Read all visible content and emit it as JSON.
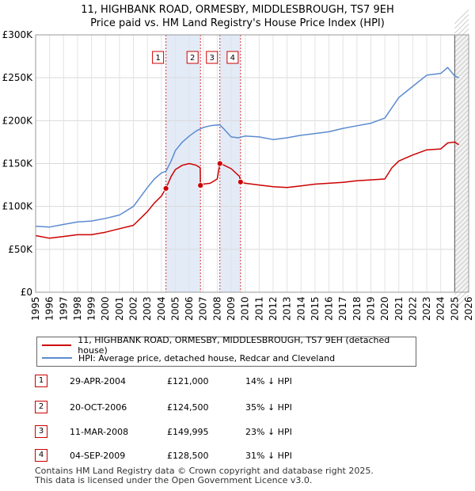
{
  "title": {
    "line1": "11, HIGHBANK ROAD, ORMESBY, MIDDLESBROUGH, TS7 9EH",
    "line2": "Price paid vs. HM Land Registry's House Price Index (HPI)"
  },
  "colors": {
    "price": "#cc0000",
    "hpi": "#5b8bd0",
    "shade": "#dce6f5"
  },
  "chart_data": {
    "type": "line",
    "title": "Price paid vs. HM Land Registry's House Price Index (HPI)",
    "xlim": [
      1995,
      2026
    ],
    "ylim": [
      0,
      300000
    ],
    "y_ticks": [
      0,
      50000,
      100000,
      150000,
      200000,
      250000,
      300000
    ],
    "y_tick_labels": [
      "£0",
      "£50K",
      "£100K",
      "£150K",
      "£200K",
      "£250K",
      "£300K"
    ],
    "x_ticks": [
      1995,
      1996,
      1997,
      1998,
      1999,
      2000,
      2001,
      2002,
      2003,
      2004,
      2005,
      2006,
      2007,
      2008,
      2009,
      2010,
      2011,
      2012,
      2013,
      2014,
      2015,
      2016,
      2017,
      2018,
      2019,
      2020,
      2021,
      2022,
      2023,
      2024,
      2025,
      2026
    ],
    "grid": true,
    "shaded_ranges": [
      [
        2004.33,
        2006.8
      ],
      [
        2008.19,
        2009.67
      ]
    ],
    "projection_start": 2025.0,
    "series": [
      {
        "name": "11, HIGHBANK ROAD, ORMESBY, MIDDLESBROUGH, TS7 9EH (detached house)",
        "color": "#cc0000",
        "x": [
          1995,
          1996,
          1997,
          1998,
          1999,
          2000,
          2001,
          2002,
          2003,
          2003.5,
          2004,
          2004.33,
          2004.7,
          2005,
          2005.5,
          2006,
          2006.5,
          2006.78,
          2006.8,
          2007,
          2007.5,
          2008,
          2008.19,
          2008.5,
          2009,
          2009.6,
          2009.67,
          2010,
          2011,
          2012,
          2013,
          2014,
          2015,
          2016,
          2017,
          2018,
          2019,
          2020,
          2020.5,
          2021,
          2022,
          2023,
          2024,
          2024.5,
          2025,
          2025.3
        ],
        "values": [
          66000,
          63000,
          65000,
          67000,
          67000,
          70000,
          74000,
          78000,
          94000,
          104000,
          112000,
          121000,
          135000,
          143000,
          148000,
          150000,
          148000,
          145000,
          124500,
          126000,
          127000,
          132000,
          149995,
          148000,
          144000,
          135000,
          128500,
          127000,
          125000,
          123000,
          122000,
          124000,
          126000,
          127000,
          128000,
          130000,
          131000,
          132000,
          145000,
          153000,
          160000,
          166000,
          167000,
          174000,
          175000,
          172000
        ]
      },
      {
        "name": "HPI: Average price, detached house, Redcar and Cleveland",
        "color": "#5b8bd0",
        "x": [
          1995,
          1996,
          1997,
          1998,
          1999,
          2000,
          2001,
          2002,
          2003,
          2003.5,
          2004,
          2004.33,
          2004.7,
          2005,
          2005.5,
          2006,
          2006.5,
          2007,
          2007.5,
          2008,
          2008.19,
          2008.5,
          2009,
          2009.5,
          2010,
          2011,
          2012,
          2013,
          2014,
          2015,
          2016,
          2017,
          2018,
          2019,
          2020,
          2020.5,
          2021,
          2022,
          2023,
          2024,
          2024.5,
          2025,
          2025.3
        ],
        "values": [
          77000,
          76000,
          79000,
          82000,
          83000,
          86000,
          90000,
          100000,
          122000,
          132000,
          139000,
          141000,
          153000,
          165000,
          175000,
          182000,
          188000,
          192000,
          194000,
          195000,
          195000,
          190000,
          181000,
          180000,
          182000,
          181000,
          178000,
          180000,
          183000,
          185000,
          187000,
          191000,
          194000,
          197000,
          203000,
          215000,
          227000,
          240000,
          253000,
          255000,
          262000,
          252000,
          250000
        ]
      }
    ],
    "sale_markers": [
      {
        "id": "1",
        "x": 2004.33,
        "value": 121000
      },
      {
        "id": "2",
        "x": 2006.8,
        "value": 124500
      },
      {
        "id": "3",
        "x": 2008.19,
        "value": 149995
      },
      {
        "id": "4",
        "x": 2009.67,
        "value": 128500
      }
    ]
  },
  "legend": {
    "price_label": "11, HIGHBANK ROAD, ORMESBY, MIDDLESBROUGH, TS7 9EH (detached house)",
    "hpi_label": "HPI: Average price, detached house, Redcar and Cleveland"
  },
  "sales": [
    {
      "num": "1",
      "date": "29-APR-2004",
      "price": "£121,000",
      "hpi": "14% ↓ HPI"
    },
    {
      "num": "2",
      "date": "20-OCT-2006",
      "price": "£124,500",
      "hpi": "35% ↓ HPI"
    },
    {
      "num": "3",
      "date": "11-MAR-2008",
      "price": "£149,995",
      "hpi": "23% ↓ HPI"
    },
    {
      "num": "4",
      "date": "04-SEP-2009",
      "price": "£128,500",
      "hpi": "31% ↓ HPI"
    }
  ],
  "footer": {
    "line1": "Contains HM Land Registry data © Crown copyright and database right 2025.",
    "line2": "This data is licensed under the Open Government Licence v3.0."
  }
}
